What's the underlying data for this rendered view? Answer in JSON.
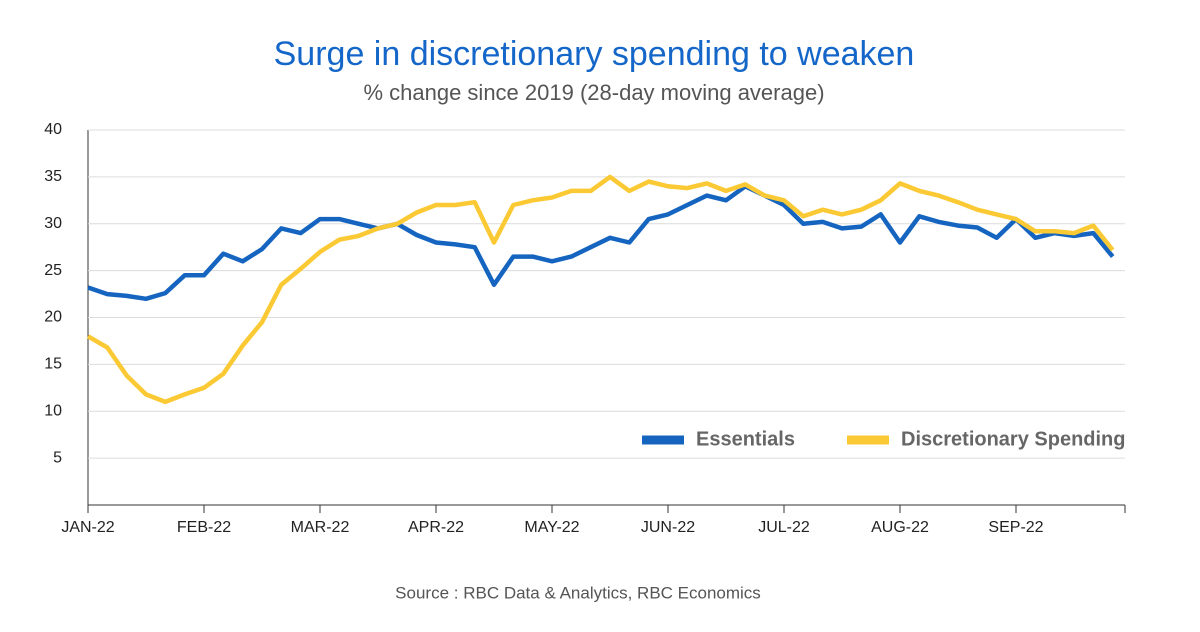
{
  "chart_data": {
    "type": "line",
    "title": "Surge in discretionary spending to weaken",
    "subtitle": "% change since 2019 (28-day moving average)",
    "source": "Source : RBC Data & Analytics, RBC Economics",
    "categories": [
      "JAN-22",
      null,
      null,
      null,
      null,
      null,
      "FEB-22",
      null,
      null,
      null,
      null,
      null,
      "MAR-22",
      null,
      null,
      null,
      null,
      null,
      "APR-22",
      null,
      null,
      null,
      null,
      null,
      "MAY-22",
      null,
      null,
      null,
      null,
      null,
      "JUN-22",
      null,
      null,
      null,
      null,
      null,
      "JUL-22",
      null,
      null,
      null,
      null,
      null,
      "AUG-22",
      null,
      null,
      null,
      null,
      null,
      "SEP-22",
      null,
      null,
      null,
      null,
      null
    ],
    "series": [
      {
        "name": "Essentials",
        "color": "#1565c0",
        "values": [
          23.2,
          22.5,
          22.3,
          22.0,
          22.6,
          24.5,
          24.5,
          26.8,
          26.0,
          27.3,
          29.5,
          29.0,
          30.5,
          30.5,
          30.0,
          29.5,
          30.0,
          28.8,
          28.0,
          27.8,
          27.5,
          23.5,
          26.5,
          26.5,
          26.0,
          26.5,
          27.5,
          28.5,
          28.0,
          30.5,
          31.0,
          32.0,
          33.0,
          32.5,
          34.0,
          33.0,
          32.0,
          30.0,
          30.2,
          29.5,
          29.7,
          31.0,
          28.0,
          30.8,
          30.2,
          29.8,
          29.6,
          28.5,
          30.5,
          28.5,
          29.0,
          28.7,
          29.0,
          26.5
        ]
      },
      {
        "name": "Discretionary Spending",
        "color": "#fbc933",
        "values": [
          18.0,
          16.8,
          13.8,
          11.8,
          11.0,
          11.8,
          12.5,
          14.0,
          17.0,
          19.5,
          23.5,
          25.2,
          27.0,
          28.3,
          28.7,
          29.5,
          30.0,
          31.2,
          32.0,
          32.0,
          32.3,
          28.0,
          32.0,
          32.5,
          32.8,
          33.5,
          33.5,
          35.0,
          33.5,
          34.5,
          34.0,
          33.8,
          34.3,
          33.5,
          34.2,
          33.0,
          32.5,
          30.8,
          31.5,
          31.0,
          31.5,
          32.5,
          34.3,
          33.5,
          33.0,
          32.3,
          31.5,
          31.0,
          30.5,
          29.2,
          29.2,
          29.0,
          29.8,
          27.2
        ]
      }
    ],
    "ylim": [
      0,
      40
    ],
    "yticks": [
      5,
      10,
      15,
      20,
      25,
      30,
      35,
      40
    ],
    "grid": true,
    "legend": "lower right"
  }
}
